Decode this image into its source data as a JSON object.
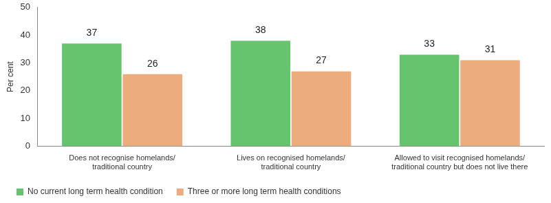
{
  "chart_data": {
    "type": "bar",
    "y_label": "Per cent",
    "categories": [
      "Does not recognise homelands/ traditional country",
      "Lives on recognised homelands/ traditional country",
      "Allowed to visit recognised homelands/ traditional country but does not live there"
    ],
    "series": [
      {
        "name": "No current long term health condition",
        "color": "#66c36e",
        "values": [
          37,
          38,
          33
        ]
      },
      {
        "name": "Three or more long term health conditions",
        "color": "#edac7e",
        "values": [
          26,
          27,
          31
        ]
      }
    ],
    "ylim": [
      0,
      50
    ],
    "yticks": [
      0,
      10,
      20,
      30,
      40,
      50
    ],
    "grid": false,
    "legend": "bottom",
    "data_labels": true
  }
}
